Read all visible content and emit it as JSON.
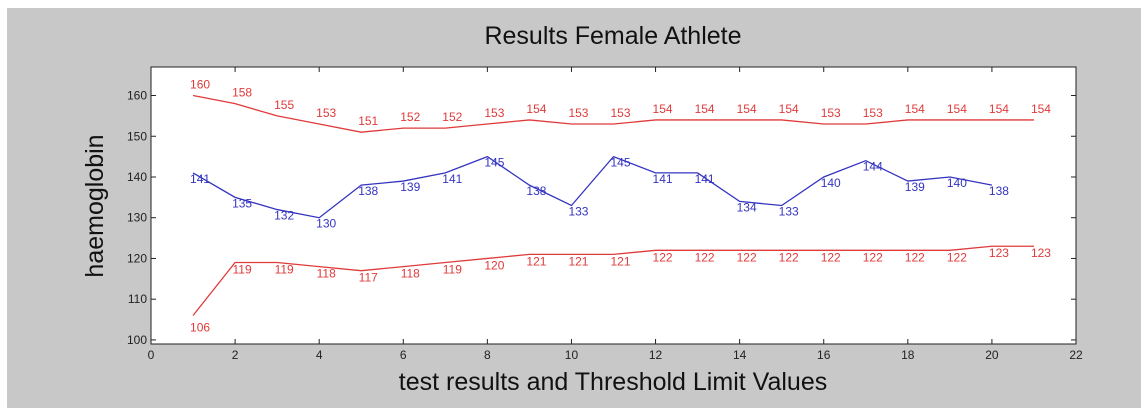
{
  "chart_data": {
    "type": "line",
    "title": "Results Female Athlete",
    "xlabel": "test results and Threshold Limit Values",
    "ylabel": "haemoglobin",
    "xlim": [
      0,
      22
    ],
    "ylim": [
      99,
      167
    ],
    "xticks": [
      0,
      2,
      4,
      6,
      8,
      10,
      12,
      14,
      16,
      18,
      20,
      22
    ],
    "yticks": [
      100,
      110,
      120,
      130,
      140,
      150,
      160
    ],
    "grid": false,
    "legend": "none",
    "series": [
      {
        "color": "#e03a3a",
        "x": [
          1,
          2,
          3,
          4,
          5,
          6,
          7,
          8,
          9,
          10,
          11,
          12,
          13,
          14,
          15,
          16,
          17,
          18,
          19,
          20,
          21
        ],
        "values": [
          160,
          158,
          155,
          153,
          151,
          152,
          152,
          153,
          154,
          153,
          153,
          154,
          154,
          154,
          154,
          153,
          153,
          154,
          154,
          154,
          154
        ]
      },
      {
        "color": "#3434c0",
        "x": [
          1,
          2,
          3,
          4,
          5,
          6,
          7,
          8,
          9,
          10,
          11,
          12,
          13,
          14,
          15,
          16,
          17,
          18,
          19,
          20
        ],
        "values": [
          141,
          135,
          132,
          130,
          138,
          139,
          141,
          145,
          138,
          133,
          145,
          141,
          141,
          134,
          133,
          140,
          144,
          139,
          140,
          138
        ]
      },
      {
        "color": "#e03a3a",
        "x": [
          1,
          2,
          3,
          4,
          5,
          6,
          7,
          8,
          9,
          10,
          11,
          12,
          13,
          14,
          15,
          16,
          17,
          18,
          19,
          20,
          21
        ],
        "values": [
          106,
          119,
          119,
          118,
          117,
          118,
          119,
          120,
          121,
          121,
          121,
          122,
          122,
          122,
          122,
          122,
          122,
          122,
          122,
          123,
          123
        ]
      }
    ]
  }
}
